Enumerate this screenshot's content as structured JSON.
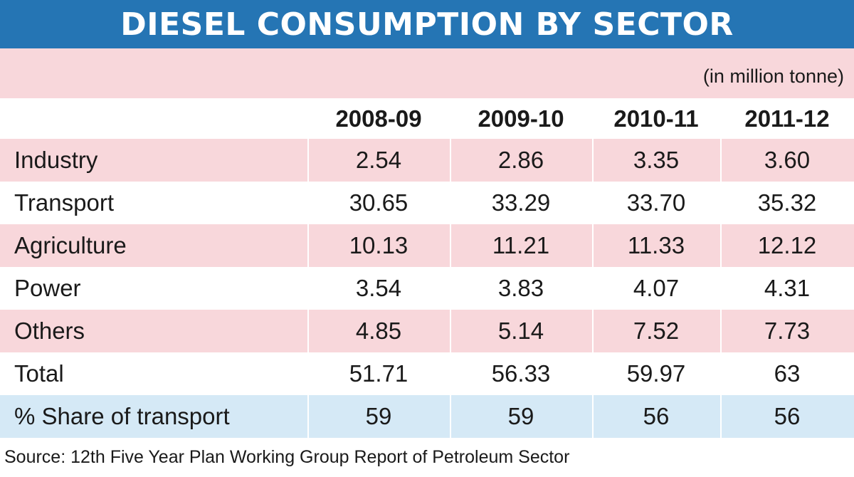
{
  "header": {
    "title": "DIESEL CONSUMPTION BY SECTOR",
    "unit_note": "(in million tonne)"
  },
  "chart_data": {
    "type": "table",
    "title": "DIESEL CONSUMPTION BY SECTOR",
    "unit": "(in million tonne)",
    "columns": [
      "2008-09",
      "2009-10",
      "2010-11",
      "2011-12"
    ],
    "rows": [
      {
        "label": "Industry",
        "values": [
          "2.54",
          "2.86",
          "3.35",
          "3.60"
        ]
      },
      {
        "label": "Transport",
        "values": [
          "30.65",
          "33.29",
          "33.70",
          "35.32"
        ]
      },
      {
        "label": "Agriculture",
        "values": [
          "10.13",
          "11.21",
          "11.33",
          "12.12"
        ]
      },
      {
        "label": "Power",
        "values": [
          "3.54",
          "3.83",
          "4.07",
          "4.31"
        ]
      },
      {
        "label": "Others",
        "values": [
          "4.85",
          "5.14",
          "7.52",
          "7.73"
        ]
      },
      {
        "label": "Total",
        "values": [
          "51.71",
          "56.33",
          "59.97",
          "63"
        ]
      },
      {
        "label": "% Share of transport",
        "values": [
          "59",
          "59",
          "56",
          "56"
        ]
      }
    ],
    "row_colors": [
      "#f8d7db",
      "#ffffff",
      "#f8d7db",
      "#ffffff",
      "#f8d7db",
      "#ffffff",
      "#d5e9f6"
    ]
  },
  "footer": {
    "source": "Source: 12th Five Year Plan Working Group Report of Petroleum Sector"
  },
  "colors": {
    "title_band": "#2575b4",
    "pink_row": "#f8d7db",
    "blue_row": "#d5e9f6"
  }
}
